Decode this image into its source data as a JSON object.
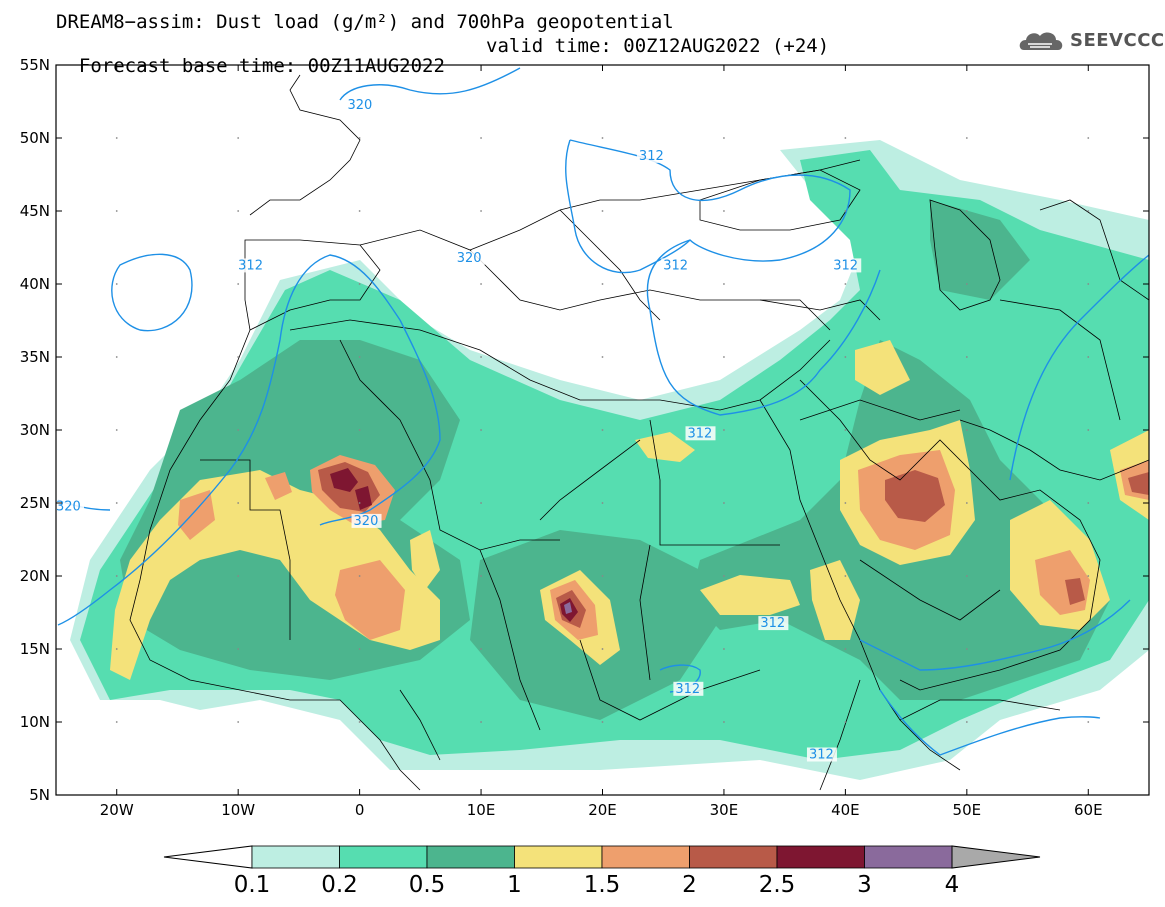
{
  "title": {
    "line1": "DREAM8−assim: Dust load (g/m²) and 700hPa geopotential",
    "line2_base": "Forecast base time: 00Z11AUG2022",
    "line2_valid": "valid time: 00Z12AUG2022 (+24)"
  },
  "logo": {
    "text": "SEEVCCC",
    "icon": "cloud-logo-icon"
  },
  "map_data": {
    "lon_range": [
      -25,
      65
    ],
    "lat_range": [
      5,
      55
    ],
    "lat_ticks": [
      "55N",
      "50N",
      "45N",
      "40N",
      "35N",
      "30N",
      "25N",
      "20N",
      "15N",
      "10N",
      "5N"
    ],
    "lon_ticks": [
      "20W",
      "10W",
      "0",
      "10E",
      "20E",
      "30E",
      "40E",
      "50E",
      "60E"
    ],
    "contour_labels": [
      {
        "text": "320",
        "lon": -1,
        "lat": 52
      },
      {
        "text": "312",
        "lon": 23,
        "lat": 48.5
      },
      {
        "text": "312",
        "lon": -10,
        "lat": 41
      },
      {
        "text": "320",
        "lon": -25,
        "lat": 24.5
      },
      {
        "text": "320",
        "lon": -0.5,
        "lat": 23.5
      },
      {
        "text": "320",
        "lon": 8,
        "lat": 41.5
      },
      {
        "text": "312",
        "lon": 25,
        "lat": 41
      },
      {
        "text": "312",
        "lon": 39,
        "lat": 41
      },
      {
        "text": "312",
        "lon": 27,
        "lat": 29.5
      },
      {
        "text": "312",
        "lon": 33,
        "lat": 16.5
      },
      {
        "text": "312",
        "lon": 26,
        "lat": 12
      },
      {
        "text": "312",
        "lon": 37,
        "lat": 7.5
      }
    ]
  },
  "colorbar": {
    "labels": [
      "0.1",
      "0.2",
      "0.5",
      "1",
      "1.5",
      "2",
      "2.5",
      "3",
      "4"
    ],
    "colors": [
      "#bdeee2",
      "#56ddb0",
      "#4cb58e",
      "#f4e27a",
      "#ee9f6d",
      "#b85a48",
      "#7e1631",
      "#8a6a9c"
    ],
    "under_color": "#ffffff",
    "over_color": "#a9a9a9"
  },
  "palette": {
    "d01": "#bdeee2",
    "d02": "#56ddb0",
    "d05": "#4cb58e",
    "d1": "#f4e27a",
    "d15": "#ee9f6d",
    "d2": "#b85a48",
    "d25": "#7e1631",
    "d3": "#8a6a9c",
    "contour": "#1e90e6"
  }
}
